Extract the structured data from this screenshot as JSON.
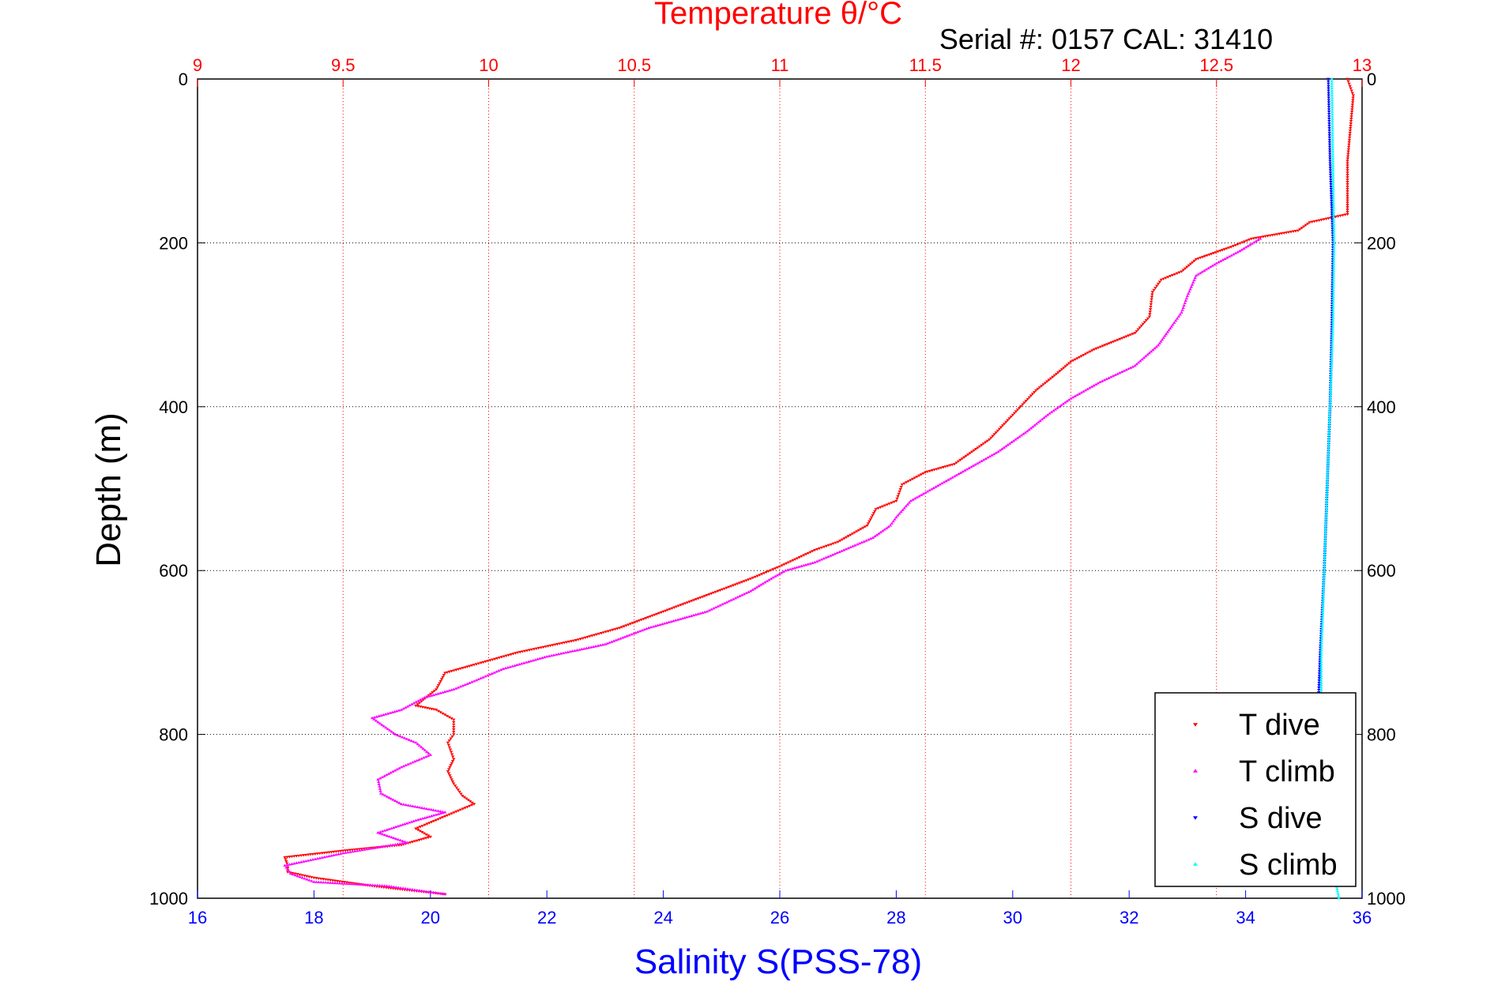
{
  "chart_data": {
    "type": "scatter",
    "title": "Temperature θ/°C",
    "subtitle": "Serial #: 0157  CAL: 31410",
    "ylabel": "Depth (m)",
    "xlabel_bottom": "Salinity S(PSS-78)",
    "xlabel_top": "Temperature θ/°C",
    "ylim": [
      0,
      1000
    ],
    "y_reversed": true,
    "y_ticks": [
      0,
      200,
      400,
      600,
      800,
      1000
    ],
    "x_bottom_lim": [
      16,
      36
    ],
    "x_bottom_ticks": [
      16,
      18,
      20,
      22,
      24,
      26,
      28,
      30,
      32,
      34,
      36
    ],
    "x_top_lim": [
      9,
      13
    ],
    "x_top_ticks": [
      "9",
      "9.5",
      "10",
      "10.5",
      "11",
      "11.5",
      "12",
      "12.5",
      "13"
    ],
    "grid": true,
    "legend_position": "bottom-right",
    "colors": {
      "temperature": "#ff0000",
      "salinity": "#0000ff",
      "grid_temperature": "#ff0000",
      "grid_depth": "#000000"
    },
    "series": [
      {
        "name": "T dive",
        "axis": "top",
        "color": "#ff0000",
        "marker": "triangle-down",
        "points": [
          [
            12.95,
            0
          ],
          [
            12.97,
            20
          ],
          [
            12.96,
            60
          ],
          [
            12.95,
            100
          ],
          [
            12.95,
            140
          ],
          [
            12.95,
            165
          ],
          [
            12.82,
            175
          ],
          [
            12.78,
            185
          ],
          [
            12.62,
            195
          ],
          [
            12.55,
            205
          ],
          [
            12.43,
            220
          ],
          [
            12.38,
            235
          ],
          [
            12.31,
            245
          ],
          [
            12.28,
            260
          ],
          [
            12.27,
            290
          ],
          [
            12.22,
            310
          ],
          [
            12.08,
            330
          ],
          [
            12.0,
            345
          ],
          [
            11.95,
            360
          ],
          [
            11.88,
            380
          ],
          [
            11.8,
            410
          ],
          [
            11.72,
            440
          ],
          [
            11.6,
            470
          ],
          [
            11.5,
            480
          ],
          [
            11.42,
            495
          ],
          [
            11.4,
            515
          ],
          [
            11.33,
            525
          ],
          [
            11.3,
            545
          ],
          [
            11.25,
            555
          ],
          [
            11.2,
            565
          ],
          [
            11.12,
            575
          ],
          [
            11.0,
            595
          ],
          [
            10.9,
            610
          ],
          [
            10.75,
            630
          ],
          [
            10.6,
            650
          ],
          [
            10.45,
            670
          ],
          [
            10.3,
            685
          ],
          [
            10.1,
            700
          ],
          [
            9.95,
            715
          ],
          [
            9.85,
            725
          ],
          [
            9.82,
            745
          ],
          [
            9.75,
            765
          ],
          [
            9.82,
            770
          ],
          [
            9.88,
            782
          ],
          [
            9.88,
            800
          ],
          [
            9.86,
            810
          ],
          [
            9.88,
            830
          ],
          [
            9.86,
            845
          ],
          [
            9.88,
            860
          ],
          [
            9.91,
            875
          ],
          [
            9.95,
            885
          ],
          [
            9.85,
            900
          ],
          [
            9.75,
            915
          ],
          [
            9.8,
            925
          ],
          [
            9.7,
            935
          ],
          [
            9.5,
            942
          ],
          [
            9.3,
            950
          ],
          [
            9.31,
            960
          ],
          [
            9.31,
            968
          ],
          [
            9.4,
            975
          ],
          [
            9.6,
            985
          ],
          [
            9.72,
            990
          ],
          [
            9.85,
            995
          ]
        ]
      },
      {
        "name": "T climb",
        "axis": "top",
        "color": "#ff00ff",
        "marker": "triangle-up",
        "points": [
          [
            9.85,
            995
          ],
          [
            9.65,
            985
          ],
          [
            9.4,
            980
          ],
          [
            9.32,
            970
          ],
          [
            9.3,
            960
          ],
          [
            9.5,
            945
          ],
          [
            9.72,
            932
          ],
          [
            9.62,
            920
          ],
          [
            9.75,
            905
          ],
          [
            9.85,
            895
          ],
          [
            9.7,
            885
          ],
          [
            9.63,
            872
          ],
          [
            9.62,
            855
          ],
          [
            9.7,
            840
          ],
          [
            9.8,
            825
          ],
          [
            9.75,
            810
          ],
          [
            9.68,
            800
          ],
          [
            9.64,
            790
          ],
          [
            9.6,
            780
          ],
          [
            9.7,
            770
          ],
          [
            9.78,
            755
          ],
          [
            9.88,
            745
          ],
          [
            9.95,
            735
          ],
          [
            10.05,
            720
          ],
          [
            10.2,
            705
          ],
          [
            10.4,
            690
          ],
          [
            10.55,
            670
          ],
          [
            10.75,
            650
          ],
          [
            10.9,
            625
          ],
          [
            10.97,
            610
          ],
          [
            11.02,
            600
          ],
          [
            11.12,
            590
          ],
          [
            11.22,
            575
          ],
          [
            11.32,
            560
          ],
          [
            11.38,
            545
          ],
          [
            11.4,
            535
          ],
          [
            11.45,
            515
          ],
          [
            11.55,
            495
          ],
          [
            11.65,
            475
          ],
          [
            11.75,
            455
          ],
          [
            11.85,
            430
          ],
          [
            11.92,
            410
          ],
          [
            12.0,
            390
          ],
          [
            12.1,
            370
          ],
          [
            12.22,
            350
          ],
          [
            12.3,
            325
          ],
          [
            12.35,
            300
          ],
          [
            12.38,
            285
          ],
          [
            12.4,
            265
          ],
          [
            12.43,
            240
          ],
          [
            12.5,
            225
          ],
          [
            12.58,
            210
          ],
          [
            12.65,
            195
          ]
        ]
      },
      {
        "name": "S dive",
        "axis": "bottom",
        "color": "#0000ff",
        "marker": "triangle-down",
        "points": [
          [
            35.42,
            0
          ],
          [
            35.45,
            100
          ],
          [
            35.5,
            200
          ],
          [
            35.48,
            300
          ],
          [
            35.45,
            400
          ],
          [
            35.4,
            500
          ],
          [
            35.35,
            600
          ],
          [
            35.28,
            700
          ],
          [
            35.25,
            760
          ]
        ]
      },
      {
        "name": "S climb",
        "axis": "bottom",
        "color": "#00ffff",
        "marker": "triangle-up",
        "points": [
          [
            35.6,
            1000
          ],
          [
            35.5,
            960
          ],
          [
            35.4,
            900
          ],
          [
            35.3,
            800
          ],
          [
            35.3,
            700
          ],
          [
            35.35,
            600
          ],
          [
            35.4,
            500
          ],
          [
            35.45,
            400
          ],
          [
            35.5,
            300
          ],
          [
            35.52,
            200
          ],
          [
            35.5,
            100
          ],
          [
            35.48,
            0
          ]
        ]
      }
    ]
  }
}
